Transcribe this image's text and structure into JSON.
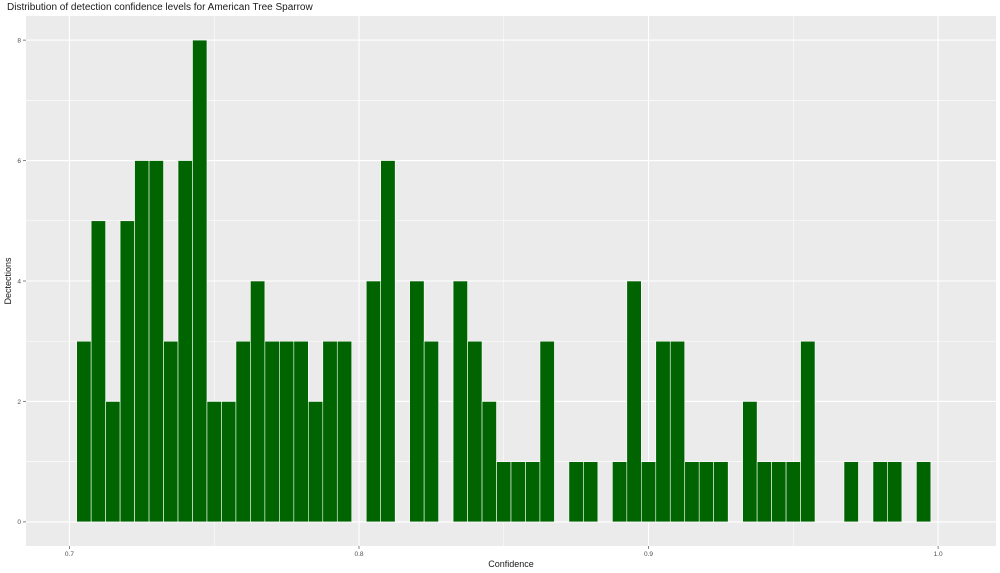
{
  "chart_data": {
    "type": "bar",
    "title": "Distribution of detection confidence levels for American Tree Sparrow",
    "xlabel": "Confidence",
    "ylabel": "Dectections",
    "xlim": [
      0.685,
      1.02
    ],
    "ylim": [
      -0.4,
      8.4
    ],
    "x_ticks": [
      0.7,
      0.8,
      0.9,
      1.0
    ],
    "x_tick_labels": [
      "0.7",
      "0.8",
      "0.9",
      "1.0"
    ],
    "y_ticks": [
      0,
      2,
      4,
      6,
      8
    ],
    "y_tick_labels": [
      "0",
      "2",
      "4",
      "6",
      "8"
    ],
    "bin_width": 0.005,
    "grid": true,
    "bar_color": "#006400",
    "panel_color": "#ebebeb",
    "x": [
      0.705,
      0.71,
      0.715,
      0.72,
      0.725,
      0.73,
      0.735,
      0.74,
      0.745,
      0.75,
      0.755,
      0.76,
      0.765,
      0.77,
      0.775,
      0.78,
      0.785,
      0.79,
      0.795,
      0.805,
      0.81,
      0.82,
      0.825,
      0.835,
      0.84,
      0.845,
      0.85,
      0.855,
      0.86,
      0.865,
      0.875,
      0.88,
      0.89,
      0.895,
      0.9,
      0.905,
      0.91,
      0.915,
      0.92,
      0.925,
      0.935,
      0.94,
      0.945,
      0.95,
      0.955,
      0.97,
      0.98,
      0.985,
      0.995
    ],
    "values": [
      3,
      5,
      2,
      5,
      6,
      6,
      3,
      6,
      8,
      2,
      2,
      3,
      4,
      3,
      3,
      3,
      2,
      3,
      3,
      4,
      6,
      4,
      3,
      4,
      3,
      2,
      1,
      1,
      1,
      3,
      1,
      1,
      1,
      4,
      1,
      3,
      3,
      1,
      1,
      1,
      2,
      1,
      1,
      1,
      3,
      1,
      1,
      1,
      1
    ]
  }
}
